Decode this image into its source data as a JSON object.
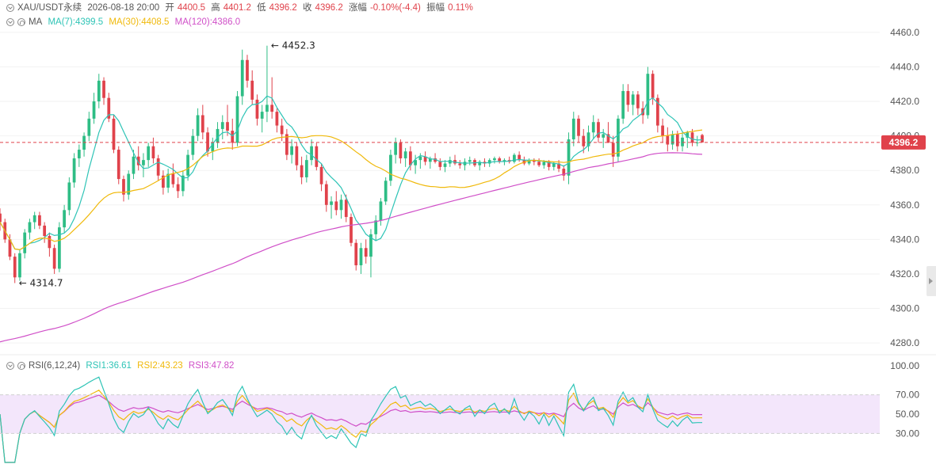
{
  "header": {
    "symbol": "XAU/USDT永续",
    "datetime": "2026-08-18 20:00",
    "open_label": "开",
    "open": "4400.5",
    "high_label": "高",
    "high": "4401.2",
    "low_label": "低",
    "low": "4396.2",
    "close_label": "收",
    "close": "4396.2",
    "change_label": "涨幅",
    "change": "-0.10%(-4.4)",
    "amplitude_label": "振幅",
    "amplitude": "0.11%"
  },
  "ma_legend": {
    "name": "MA",
    "ma7": "MA(7):4399.5",
    "ma30": "MA(30):4408.5",
    "ma120": "MA(120):4386.0"
  },
  "rsi_legend": {
    "name": "RSI(6,12,24)",
    "rsi1": "RSI1:36.61",
    "rsi2": "RSI2:43.23",
    "rsi3": "RSI3:47.82"
  },
  "colors": {
    "up": "#2ebd85",
    "down": "#e0424b",
    "ma7": "#2ec4b6",
    "ma30": "#f0b90b",
    "ma120": "#d04fc8",
    "rsi1": "#2ec4b6",
    "rsi2": "#f0b90b",
    "rsi3": "#d04fc8",
    "rsi_band": "#f3e6fb",
    "last_price_tag": "#e0424b"
  },
  "chart_data": [
    {
      "type": "candlestick",
      "price_axis": {
        "ylim": [
          4275,
          4465
        ],
        "ticks": [
          "4460.0",
          "4440.0",
          "4420.0",
          "4400.0",
          "4380.0",
          "4360.0",
          "4340.0",
          "4320.0",
          "4300.0",
          "4280.0"
        ]
      },
      "last_price": 4396.2,
      "last_price_label": "4396.2",
      "annotations": [
        {
          "text": "4452.3",
          "value": 4452.3,
          "bar": 54
        },
        {
          "text": "4314.7",
          "value": 4314.7,
          "bar": 3
        }
      ],
      "candles": [
        [
          4355,
          4358,
          4345,
          4350
        ],
        [
          4350,
          4352,
          4338,
          4340
        ],
        [
          4340,
          4343,
          4328,
          4330
        ],
        [
          4330,
          4332,
          4314.7,
          4318
        ],
        [
          4318,
          4334,
          4316,
          4332
        ],
        [
          4332,
          4346,
          4329,
          4344
        ],
        [
          4344,
          4352,
          4340,
          4350
        ],
        [
          4350,
          4356,
          4346,
          4354
        ],
        [
          4354,
          4356,
          4346,
          4348
        ],
        [
          4348,
          4350,
          4338,
          4342
        ],
        [
          4342,
          4344,
          4330,
          4335
        ],
        [
          4335,
          4337,
          4320,
          4323
        ],
        [
          4323,
          4350,
          4321,
          4347
        ],
        [
          4347,
          4360,
          4344,
          4357
        ],
        [
          4357,
          4376,
          4354,
          4373
        ],
        [
          4373,
          4390,
          4370,
          4387
        ],
        [
          4387,
          4395,
          4382,
          4392
        ],
        [
          4392,
          4402,
          4388,
          4400
        ],
        [
          4400,
          4414,
          4397,
          4410
        ],
        [
          4410,
          4425,
          4407,
          4420
        ],
        [
          4420,
          4436,
          4416,
          4432
        ],
        [
          4432,
          4434,
          4418,
          4422
        ],
        [
          4422,
          4425,
          4408,
          4410
        ],
        [
          4410,
          4412,
          4390,
          4392
        ],
        [
          4392,
          4394,
          4372,
          4375
        ],
        [
          4375,
          4377,
          4362,
          4366
        ],
        [
          4366,
          4380,
          4363,
          4378
        ],
        [
          4378,
          4392,
          4375,
          4388
        ],
        [
          4388,
          4394,
          4380,
          4383
        ],
        [
          4383,
          4390,
          4376,
          4386
        ],
        [
          4386,
          4396,
          4382,
          4394
        ],
        [
          4394,
          4399,
          4384,
          4387
        ],
        [
          4387,
          4389,
          4374,
          4377
        ],
        [
          4377,
          4380,
          4366,
          4370
        ],
        [
          4370,
          4381,
          4367,
          4378
        ],
        [
          4378,
          4384,
          4370,
          4372
        ],
        [
          4372,
          4376,
          4364,
          4368
        ],
        [
          4368,
          4380,
          4365,
          4377
        ],
        [
          4377,
          4392,
          4374,
          4389
        ],
        [
          4389,
          4404,
          4386,
          4400
        ],
        [
          4400,
          4416,
          4397,
          4412
        ],
        [
          4412,
          4418,
          4398,
          4402
        ],
        [
          4402,
          4405,
          4388,
          4391
        ],
        [
          4391,
          4399,
          4386,
          4396
        ],
        [
          4396,
          4408,
          4393,
          4404
        ],
        [
          4404,
          4412,
          4398,
          4408
        ],
        [
          4408,
          4418,
          4400,
          4403
        ],
        [
          4403,
          4410,
          4392,
          4396
        ],
        [
          4396,
          4426,
          4394,
          4423
        ],
        [
          4423,
          4450,
          4418,
          4444
        ],
        [
          4444,
          4447,
          4428,
          4432
        ],
        [
          4432,
          4438,
          4418,
          4421
        ],
        [
          4421,
          4424,
          4406,
          4410
        ],
        [
          4410,
          4418,
          4402,
          4414
        ],
        [
          4414,
          4452.3,
          4408,
          4418
        ],
        [
          4418,
          4434,
          4410,
          4414
        ],
        [
          4414,
          4416,
          4402,
          4406
        ],
        [
          4406,
          4410,
          4397,
          4401
        ],
        [
          4401,
          4404,
          4386,
          4389
        ],
        [
          4389,
          4398,
          4384,
          4394
        ],
        [
          4394,
          4396,
          4380,
          4383
        ],
        [
          4383,
          4388,
          4372,
          4376
        ],
        [
          4376,
          4389,
          4373,
          4386
        ],
        [
          4386,
          4398,
          4383,
          4394
        ],
        [
          4394,
          4396,
          4380,
          4382
        ],
        [
          4382,
          4384,
          4368,
          4372
        ],
        [
          4372,
          4374,
          4356,
          4360
        ],
        [
          4360,
          4365,
          4352,
          4362
        ],
        [
          4362,
          4368,
          4354,
          4357
        ],
        [
          4357,
          4366,
          4352,
          4363
        ],
        [
          4363,
          4366,
          4350,
          4353
        ],
        [
          4353,
          4355,
          4336,
          4338
        ],
        [
          4338,
          4340,
          4322,
          4325
        ],
        [
          4325,
          4338,
          4320,
          4335
        ],
        [
          4335,
          4340,
          4326,
          4330
        ],
        [
          4330,
          4346,
          4318,
          4343
        ],
        [
          4343,
          4354,
          4339,
          4351
        ],
        [
          4351,
          4364,
          4348,
          4362
        ],
        [
          4362,
          4376,
          4360,
          4374
        ],
        [
          4374,
          4392,
          4371,
          4389
        ],
        [
          4389,
          4399,
          4384,
          4396
        ],
        [
          4396,
          4398,
          4384,
          4387
        ],
        [
          4387,
          4393,
          4382,
          4391
        ],
        [
          4391,
          4394,
          4380,
          4383
        ],
        [
          4383,
          4389,
          4378,
          4386
        ],
        [
          4386,
          4390,
          4381,
          4388
        ],
        [
          4388,
          4391,
          4383,
          4385
        ],
        [
          4385,
          4388,
          4381,
          4387
        ],
        [
          4387,
          4390,
          4384,
          4385
        ],
        [
          4385,
          4387,
          4380,
          4382
        ],
        [
          4382,
          4386,
          4379,
          4384
        ],
        [
          4384,
          4388,
          4382,
          4386
        ],
        [
          4386,
          4389,
          4383,
          4384
        ],
        [
          4384,
          4386,
          4381,
          4383
        ],
        [
          4383,
          4387,
          4380,
          4385
        ],
        [
          4385,
          4388,
          4383,
          4386
        ],
        [
          4386,
          4387,
          4382,
          4383
        ],
        [
          4383,
          4386,
          4380,
          4385
        ],
        [
          4385,
          4387,
          4382,
          4384
        ],
        [
          4384,
          4387,
          4382,
          4386
        ],
        [
          4386,
          4388,
          4384,
          4387
        ],
        [
          4387,
          4388,
          4384,
          4385
        ],
        [
          4385,
          4387,
          4383,
          4386
        ],
        [
          4386,
          4388,
          4384,
          4385
        ],
        [
          4385,
          4390,
          4384,
          4389
        ],
        [
          4389,
          4391,
          4385,
          4386
        ],
        [
          4386,
          4388,
          4383,
          4384
        ],
        [
          4384,
          4387,
          4383,
          4386
        ],
        [
          4386,
          4387,
          4383,
          4385
        ],
        [
          4385,
          4387,
          4382,
          4383
        ],
        [
          4383,
          4386,
          4381,
          4385
        ],
        [
          4385,
          4386,
          4380,
          4382
        ],
        [
          4382,
          4385,
          4380,
          4384
        ],
        [
          4384,
          4386,
          4379,
          4381
        ],
        [
          4381,
          4383,
          4374,
          4377
        ],
        [
          4377,
          4402,
          4372,
          4398
        ],
        [
          4398,
          4414,
          4394,
          4410
        ],
        [
          4410,
          4412,
          4396,
          4400
        ],
        [
          4400,
          4404,
          4390,
          4394
        ],
        [
          4394,
          4406,
          4391,
          4402
        ],
        [
          4402,
          4412,
          4398,
          4408
        ],
        [
          4408,
          4410,
          4396,
          4399
        ],
        [
          4399,
          4404,
          4393,
          4401
        ],
        [
          4401,
          4408,
          4396,
          4396
        ],
        [
          4396,
          4400,
          4382,
          4388
        ],
        [
          4388,
          4412,
          4385,
          4410
        ],
        [
          4410,
          4430,
          4407,
          4426
        ],
        [
          4426,
          4430,
          4414,
          4418
        ],
        [
          4418,
          4426,
          4412,
          4424
        ],
        [
          4424,
          4426,
          4412,
          4416
        ],
        [
          4416,
          4420,
          4407,
          4412
        ],
        [
          4412,
          4440,
          4410,
          4436
        ],
        [
          4436,
          4438,
          4418,
          4422
        ],
        [
          4422,
          4424,
          4402,
          4406
        ],
        [
          4406,
          4410,
          4396,
          4400
        ],
        [
          4400,
          4405,
          4391,
          4395
        ],
        [
          4395,
          4403,
          4392,
          4401
        ],
        [
          4401,
          4403,
          4391,
          4394
        ],
        [
          4394,
          4402,
          4391,
          4399
        ],
        [
          4399,
          4403,
          4393,
          4402
        ],
        [
          4402,
          4404,
          4394,
          4396
        ],
        [
          4396,
          4400,
          4394,
          4396.2
        ],
        [
          4400.5,
          4401.2,
          4396.2,
          4396.2
        ]
      ]
    },
    {
      "type": "line",
      "name": "RSI(6,12,24)",
      "ylim": [
        0,
        100
      ],
      "ticks": [
        "100.00",
        "70.00",
        "50.00",
        "30.00"
      ],
      "band": [
        30,
        70
      ]
    }
  ]
}
